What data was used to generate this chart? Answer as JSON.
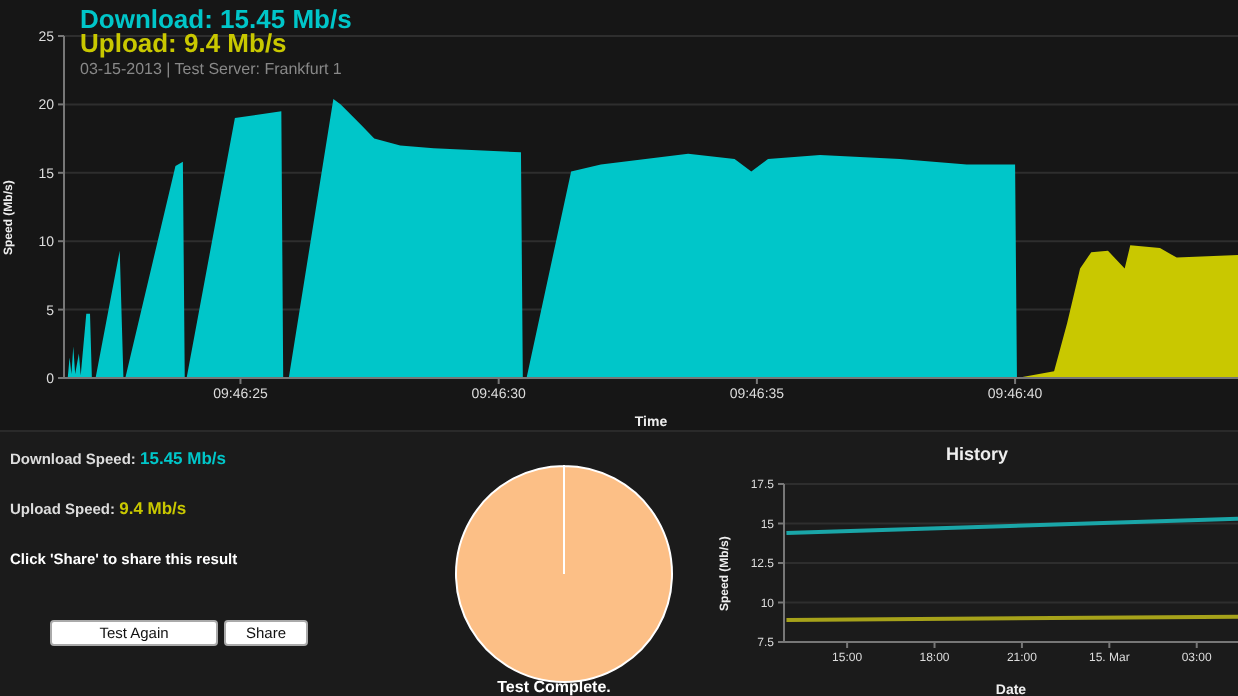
{
  "chart_data": [
    {
      "type": "area",
      "subtitle": "03-15-2013 | Test Server: Frankfurt 1",
      "xlabel": "Time",
      "ylabel": "Speed (Mb/s)",
      "legend": "top left",
      "grid": "y",
      "xlim": [
        9.77266,
        9.77898
      ],
      "xticks": [
        {
          "value": 9.77361,
          "label": "09:46:25"
        },
        {
          "value": 9.775,
          "label": "09:46:30"
        },
        {
          "value": 9.77639,
          "label": "09:46:35"
        },
        {
          "value": 9.77778,
          "label": "09:46:40"
        }
      ],
      "ylim": [
        0,
        25
      ],
      "yticks": [
        0,
        5,
        10,
        15,
        20,
        25
      ],
      "series": [
        {
          "name": "Download: 15.45 Mb/s",
          "color": "#00c6c9",
          "x": [
            9.77268,
            9.77269,
            9.7727,
            9.77271,
            9.77272,
            9.77274,
            9.77275,
            9.77278,
            9.7728,
            9.77281,
            9.77283,
            9.77296,
            9.77298,
            9.77299,
            9.77326,
            9.7733,
            9.77331,
            9.77332,
            9.77358,
            9.77383,
            9.77384,
            9.77387,
            9.77411,
            9.77415,
            9.77426,
            9.77433,
            9.77447,
            9.77465,
            9.77512,
            9.77513,
            9.77515,
            9.77539,
            9.77555,
            9.77602,
            9.77627,
            9.77636,
            9.77645,
            9.77673,
            9.77716,
            9.77752,
            9.77778,
            9.77779
          ],
          "values": [
            0,
            1.5,
            0.3,
            2.3,
            0.3,
            1.8,
            0.2,
            4.7,
            4.7,
            0,
            0,
            9.3,
            0,
            0,
            15.5,
            15.8,
            0,
            0,
            19,
            19.5,
            0,
            0,
            20.4,
            20,
            18.5,
            17.5,
            17,
            16.8,
            16.5,
            0,
            0,
            15.1,
            15.6,
            16.4,
            16,
            15.1,
            16,
            16.3,
            16,
            15.6,
            15.6,
            0
          ]
        },
        {
          "name": "Upload: 9.4 Mb/s",
          "color": "#c9c800",
          "x": [
            9.77779,
            9.77799,
            9.77806,
            9.77813,
            9.77819,
            9.77828,
            9.77837,
            9.7784,
            9.77856,
            9.77865,
            9.77898
          ],
          "values": [
            0,
            0.5,
            4,
            8,
            9.2,
            9.3,
            8,
            9.7,
            9.5,
            8.8,
            9
          ]
        }
      ]
    },
    {
      "type": "pie",
      "categories": [
        null
      ],
      "values": [
        100
      ],
      "colors": [
        "#fcbf86"
      ],
      "annotations": [
        "Test Complete."
      ]
    },
    {
      "type": "line",
      "title": "History",
      "xlabel": "Date",
      "ylabel": "Speed (Mb/s)",
      "grid": "y",
      "xlim": [
        "2013-03-14T12:50",
        "2013-03-15T04:25"
      ],
      "xticks": [
        {
          "value": "2013-03-14T15:00",
          "label": "15:00"
        },
        {
          "value": "2013-03-14T18:00",
          "label": "18:00"
        },
        {
          "value": "2013-03-14T21:00",
          "label": "21:00"
        },
        {
          "value": "2013-03-15T00:00",
          "label": "15. Mar"
        },
        {
          "value": "2013-03-15T03:00",
          "label": "03:00"
        }
      ],
      "ylim": [
        7.5,
        17.5
      ],
      "yticks": [
        7.5,
        10,
        12.5,
        15,
        17.5
      ],
      "series": [
        {
          "color": "#1aa6a8",
          "x": [
            "2013-03-14T12:55",
            "2013-03-15T04:25"
          ],
          "values": [
            14.4,
            15.3
          ]
        },
        {
          "color": "#a6a21a",
          "x": [
            "2013-03-14T12:55",
            "2013-03-15T04:25"
          ],
          "values": [
            8.9,
            9.1
          ]
        }
      ]
    },
    {
      "type": "other",
      "annotations": [
        "Download Speed:",
        "15.45 Mb/s",
        "Upload Speed:",
        "9.4 Mb/s",
        "Click 'Share' to share this result",
        "Test Again",
        "Share"
      ]
    }
  ]
}
